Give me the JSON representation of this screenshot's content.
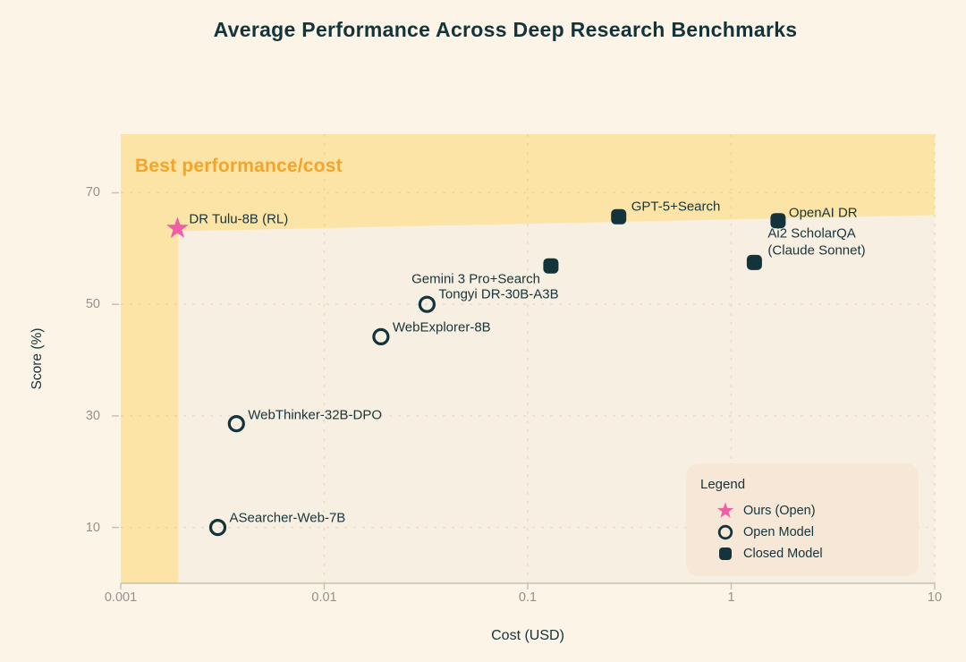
{
  "chart_data": {
    "type": "scatter",
    "title": "Average Performance Across Deep Research Benchmarks",
    "xlabel": "Cost (USD)",
    "ylabel": "Score (%)",
    "x_scale": "log",
    "xlim": [
      0.001,
      10
    ],
    "ylim": [
      0,
      80.5
    ],
    "x_tick_labels": [
      "0.001",
      "0.01",
      "0.1",
      "1",
      "10"
    ],
    "x_tick_values": [
      0.001,
      0.01,
      0.1,
      1,
      10
    ],
    "y_tick_values": [
      10,
      30,
      50,
      70
    ],
    "grid": "dashed",
    "annotation": {
      "text": "Best performance/cost"
    },
    "legend": {
      "title": "Legend",
      "position": "bottom-right",
      "items": [
        {
          "marker": "star",
          "label": "Ours (Open)"
        },
        {
          "marker": "circle",
          "label": "Open Model"
        },
        {
          "marker": "square",
          "label": "Closed Model"
        }
      ]
    },
    "colors": {
      "page_bg": "#fbf4e7",
      "plot_bg": "#f7efe1",
      "highlight_band": "#fce4a7",
      "dark": "#14343b",
      "pink": "#ee5fa5",
      "orange": "#f4a428",
      "tick_gray": "#95918a",
      "axis_line": "#c8c1b0",
      "gridline": "#cbb98c",
      "legend_bg": "#f6e7d6"
    },
    "series": [
      {
        "name": "Ours (Open)",
        "marker": "star",
        "points": [
          {
            "label": "DR Tulu-8B (RL)",
            "cost": 0.0019,
            "score": 63.6,
            "label_dx": 13,
            "label_dy": -9,
            "label_align": "left"
          }
        ]
      },
      {
        "name": "Open Model",
        "marker": "circle",
        "points": [
          {
            "label": "WebThinker-32B-DPO",
            "cost": 0.0037,
            "score": 28.6,
            "label_dx": 13,
            "label_dy": -9,
            "label_align": "left"
          },
          {
            "label": "ASearcher-Web-7B",
            "cost": 0.003,
            "score": 10,
            "label_dx": 13,
            "label_dy": -10,
            "label_align": "left"
          },
          {
            "label": "WebExplorer-8B",
            "cost": 0.019,
            "score": 44.2,
            "label_dx": 13,
            "label_dy": -9,
            "label_align": "left"
          },
          {
            "label": "Tongyi DR-30B-A3B",
            "cost": 0.032,
            "score": 50,
            "label_dx": 13,
            "label_dy": -10,
            "label_align": "left"
          }
        ]
      },
      {
        "name": "Closed Model",
        "marker": "square",
        "points": [
          {
            "label": "Gemini 3 Pro+Search",
            "cost": 0.13,
            "score": 56.9,
            "label_dx": -12,
            "label_dy": 16,
            "label_align": "right"
          },
          {
            "label": "GPT-5+Search",
            "cost": 0.28,
            "score": 65.7,
            "label_dx": 14,
            "label_dy": -10,
            "label_align": "left"
          },
          {
            "label": "OpenAI DR",
            "cost": 1.7,
            "score": 65,
            "label_dx": 12,
            "label_dy": -8,
            "label_align": "left"
          },
          {
            "label": "Ai2 ScholarQA\n(Claude Sonnet)",
            "cost": 1.3,
            "score": 57.5,
            "label_dx": 15,
            "label_dy": -22,
            "label_align": "left"
          }
        ]
      }
    ]
  }
}
